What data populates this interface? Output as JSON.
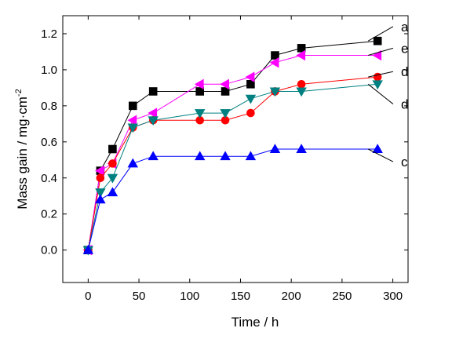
{
  "chart_data": {
    "type": "line",
    "title": "",
    "xlabel": "Time / h",
    "ylabel_main": "Mass gain / mg·cm",
    "ylabel_exp": "-2",
    "xlim": [
      -25,
      315
    ],
    "ylim": [
      -0.18,
      1.3
    ],
    "xticks": [
      0,
      50,
      100,
      150,
      200,
      250,
      300
    ],
    "yticks": [
      0.0,
      0.2,
      0.4,
      0.6,
      0.8,
      1.0,
      1.2
    ],
    "ytick_labels": [
      "0.0",
      "0.2",
      "0.4",
      "0.6",
      "0.8",
      "1.0",
      "1.2"
    ],
    "grid": false,
    "series": [
      {
        "label": "a",
        "color": "#000000",
        "marker": "square",
        "x": [
          0,
          12,
          24,
          44,
          64,
          110,
          135,
          160,
          184,
          210,
          285
        ],
        "y": [
          0.0,
          0.44,
          0.56,
          0.8,
          0.88,
          0.88,
          0.88,
          0.92,
          1.08,
          1.12,
          1.16
        ],
        "label_pos": {
          "x": 308,
          "y": 1.24
        }
      },
      {
        "label": "e",
        "color": "#ff00ff",
        "marker": "triangle-left",
        "x": [
          0,
          12,
          24,
          44,
          64,
          110,
          135,
          160,
          184,
          210,
          285
        ],
        "y": [
          0.0,
          0.44,
          0.48,
          0.72,
          0.76,
          0.92,
          0.92,
          0.96,
          1.04,
          1.08,
          1.08
        ],
        "label_pos": {
          "x": 308,
          "y": 1.12
        }
      },
      {
        "label": "d",
        "color": "#ff0000",
        "marker": "circle",
        "x": [
          0,
          12,
          24,
          44,
          64,
          110,
          135,
          160,
          184,
          210,
          285
        ],
        "y": [
          0.0,
          0.4,
          0.48,
          0.68,
          0.72,
          0.72,
          0.72,
          0.76,
          0.88,
          0.92,
          0.96
        ],
        "label_pos": {
          "x": 308,
          "y": 0.99
        }
      },
      {
        "label": "d",
        "color": "#008080",
        "marker": "triangle-down",
        "x": [
          0,
          12,
          24,
          44,
          64,
          110,
          135,
          160,
          184,
          210,
          285
        ],
        "y": [
          0.0,
          0.32,
          0.4,
          0.68,
          0.72,
          0.76,
          0.76,
          0.84,
          0.88,
          0.88,
          0.92
        ],
        "label_pos": {
          "x": 308,
          "y": 0.81
        }
      },
      {
        "label": "c",
        "color": "#0000ff",
        "marker": "triangle-up",
        "x": [
          0,
          12,
          24,
          44,
          64,
          110,
          135,
          160,
          184,
          210,
          285
        ],
        "y": [
          0.0,
          0.28,
          0.32,
          0.48,
          0.52,
          0.52,
          0.52,
          0.52,
          0.56,
          0.56,
          0.56
        ],
        "label_pos": {
          "x": 308,
          "y": 0.49
        }
      }
    ]
  }
}
